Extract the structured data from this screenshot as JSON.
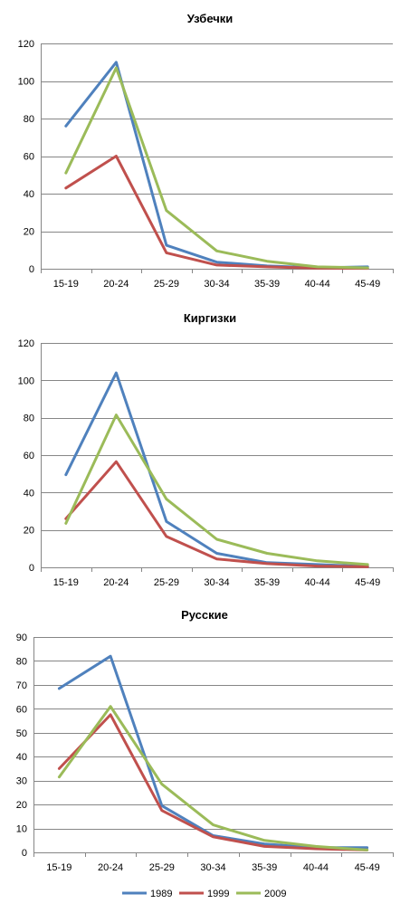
{
  "chart_data": [
    {
      "type": "line",
      "title": "Узбечки",
      "categories": [
        "15-19",
        "20-24",
        "25-29",
        "30-34",
        "35-39",
        "40-44",
        "45-49"
      ],
      "ylim": [
        0,
        120
      ],
      "yticks": [
        0,
        20,
        40,
        60,
        80,
        100,
        120
      ],
      "grid": true,
      "series": [
        {
          "name": "1989",
          "color": "#4F81BD",
          "values": [
            76,
            110,
            12.5,
            3.5,
            1.5,
            0.5,
            1
          ]
        },
        {
          "name": "1999",
          "color": "#C0504D",
          "values": [
            43,
            60,
            8.5,
            2,
            1,
            0.3,
            0.2
          ]
        },
        {
          "name": "2009",
          "color": "#9BBB59",
          "values": [
            51,
            107,
            31,
            9.5,
            4,
            1,
            0.5
          ]
        }
      ]
    },
    {
      "type": "line",
      "title": "Киргизки",
      "categories": [
        "15-19",
        "20-24",
        "25-29",
        "30-34",
        "35-39",
        "40-44",
        "45-49"
      ],
      "ylim": [
        0,
        120
      ],
      "yticks": [
        0,
        20,
        40,
        60,
        80,
        100,
        120
      ],
      "grid": true,
      "series": [
        {
          "name": "1989",
          "color": "#4F81BD",
          "values": [
            49.5,
            104,
            24.5,
            7.5,
            2.5,
            1.5,
            0.5
          ]
        },
        {
          "name": "1999",
          "color": "#C0504D",
          "values": [
            26,
            56.5,
            16.5,
            4.5,
            2,
            0.7,
            0.3
          ]
        },
        {
          "name": "2009",
          "color": "#9BBB59",
          "values": [
            23.5,
            81.5,
            36.5,
            15,
            7.5,
            3.5,
            1.5
          ]
        }
      ]
    },
    {
      "type": "line",
      "title": "Русские",
      "categories": [
        "15-19",
        "20-24",
        "25-29",
        "30-34",
        "35-39",
        "40-44",
        "45-49"
      ],
      "ylim": [
        0,
        90
      ],
      "yticks": [
        0,
        10,
        20,
        30,
        40,
        50,
        60,
        70,
        80,
        90
      ],
      "grid": true,
      "legend_position": "bottom",
      "series": [
        {
          "name": "1989",
          "color": "#4F81BD",
          "values": [
            68.5,
            82,
            19.5,
            7,
            3.5,
            2,
            2
          ]
        },
        {
          "name": "1999",
          "color": "#C0504D",
          "values": [
            35,
            57.5,
            17.5,
            6.5,
            2.5,
            1.5,
            1
          ]
        },
        {
          "name": "2009",
          "color": "#9BBB59",
          "values": [
            31.5,
            61,
            28.5,
            11.5,
            5,
            2.5,
            1
          ]
        }
      ]
    }
  ],
  "legend": {
    "items": [
      {
        "label": "1989",
        "color": "#4F81BD"
      },
      {
        "label": "1999",
        "color": "#C0504D"
      },
      {
        "label": "2009",
        "color": "#9BBB59"
      }
    ]
  }
}
